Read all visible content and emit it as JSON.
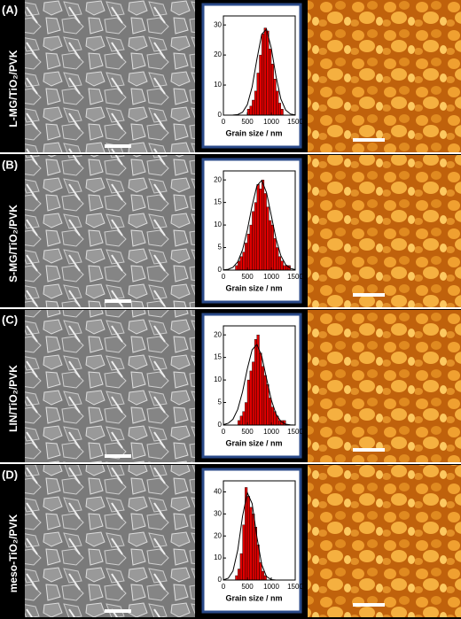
{
  "panels": [
    {
      "letter": "(A)",
      "label": "L-MG/TiO₂/PVK"
    },
    {
      "letter": "(B)",
      "label": "S-MG/TiO₂/PVK"
    },
    {
      "letter": "(C)",
      "label": "LIN/TiO₂/PVK"
    },
    {
      "letter": "(D)",
      "label": "meso-TiO₂/PVK"
    }
  ],
  "chart_data": [
    {
      "type": "histogram",
      "xlabel": "Grain size / nm",
      "color": "#e00000",
      "bins": [
        500,
        550,
        600,
        650,
        700,
        750,
        800,
        850,
        900,
        950,
        1000,
        1050,
        1100,
        1150,
        1200,
        1250
      ],
      "counts": [
        2,
        3,
        5,
        8,
        14,
        20,
        27,
        29,
        28,
        22,
        17,
        12,
        8,
        4,
        2
      ],
      "xlim": [
        0,
        1500
      ],
      "xticks": [
        0,
        500,
        1000,
        1500
      ],
      "ylim": [
        0,
        33
      ],
      "yticks": [
        0,
        10,
        20,
        30
      ],
      "fit": {
        "x": [
          0,
          100,
          200,
          300,
          400,
          500,
          600,
          700,
          800,
          900,
          1000,
          1100,
          1200,
          1300,
          1400,
          1500
        ],
        "values": [
          0,
          0,
          0.03,
          0.19,
          0.96,
          3.5,
          9.4,
          18.6,
          26.9,
          28.6,
          22.3,
          12.8,
          5.4,
          1.7,
          0.38,
          0.06
        ]
      }
    },
    {
      "type": "histogram",
      "xlabel": "Grain size / nm",
      "color": "#e00000",
      "bins": [
        250,
        300,
        350,
        400,
        450,
        500,
        550,
        600,
        650,
        700,
        750,
        800,
        850,
        900,
        950,
        1000,
        1050,
        1100,
        1150,
        1200,
        1250,
        1300,
        1350,
        1400
      ],
      "counts": [
        1,
        2,
        3,
        4,
        6,
        8,
        10,
        13,
        15,
        19,
        18,
        20,
        17,
        14,
        11,
        10,
        7,
        5,
        3,
        2,
        1,
        1,
        1
      ],
      "xlim": [
        0,
        1500
      ],
      "xticks": [
        0,
        500,
        1000,
        1500
      ],
      "ylim": [
        0,
        22
      ],
      "yticks": [
        0,
        5,
        10,
        15,
        20
      ],
      "fit": {
        "x": [
          0,
          100,
          200,
          300,
          400,
          500,
          600,
          700,
          800,
          900,
          1000,
          1100,
          1200,
          1300,
          1400,
          1500
        ],
        "values": [
          0.04,
          0.17,
          0.62,
          1.85,
          4.5,
          8.9,
          14.3,
          18.7,
          19.9,
          17.2,
          12.1,
          6.9,
          3.2,
          1.2,
          0.38,
          0.09
        ]
      }
    },
    {
      "type": "histogram",
      "xlabel": "Grain size / nm",
      "color": "#e00000",
      "bins": [
        300,
        350,
        400,
        450,
        500,
        550,
        600,
        650,
        700,
        750,
        800,
        850,
        900,
        950,
        1000,
        1050,
        1100,
        1150,
        1200,
        1250,
        1300
      ],
      "counts": [
        1,
        2,
        3,
        5,
        10,
        12,
        14,
        19,
        20,
        16,
        13,
        11,
        9,
        6,
        4,
        3,
        2,
        1,
        1,
        1
      ],
      "xlim": [
        0,
        1500
      ],
      "xticks": [
        0,
        500,
        1000,
        1500
      ],
      "ylim": [
        0,
        22
      ],
      "yticks": [
        0,
        5,
        10,
        15,
        20
      ],
      "fit": {
        "x": [
          0,
          100,
          200,
          300,
          400,
          500,
          600,
          700,
          800,
          900,
          1000,
          1100,
          1200,
          1300,
          1400,
          1500
        ],
        "values": [
          0.1,
          0.4,
          1.3,
          3.5,
          7.4,
          12.5,
          16.7,
          17.9,
          15.3,
          10.4,
          5.6,
          2.4,
          0.8,
          0.2,
          0.05,
          0
        ]
      }
    },
    {
      "type": "histogram",
      "xlabel": "Grain size / nm",
      "color": "#e00000",
      "bins": [
        250,
        300,
        350,
        400,
        450,
        500,
        550,
        600,
        650,
        700,
        750,
        800,
        850,
        900
      ],
      "counts": [
        2,
        5,
        12,
        25,
        42,
        38,
        33,
        30,
        24,
        16,
        8,
        4,
        2
      ],
      "xlim": [
        0,
        1500
      ],
      "xticks": [
        0,
        500,
        1000,
        1500
      ],
      "ylim": [
        0,
        45
      ],
      "yticks": [
        0,
        10,
        20,
        30,
        40
      ],
      "fit": {
        "x": [
          0,
          100,
          200,
          300,
          400,
          500,
          600,
          700,
          800,
          900,
          1000,
          1100,
          1200,
          1300,
          1400,
          1500
        ],
        "values": [
          0.1,
          0.8,
          4.1,
          13.6,
          29,
          39.6,
          34.7,
          19.5,
          7,
          1.6,
          0.2,
          0,
          0,
          0,
          0,
          0
        ]
      }
    }
  ]
}
